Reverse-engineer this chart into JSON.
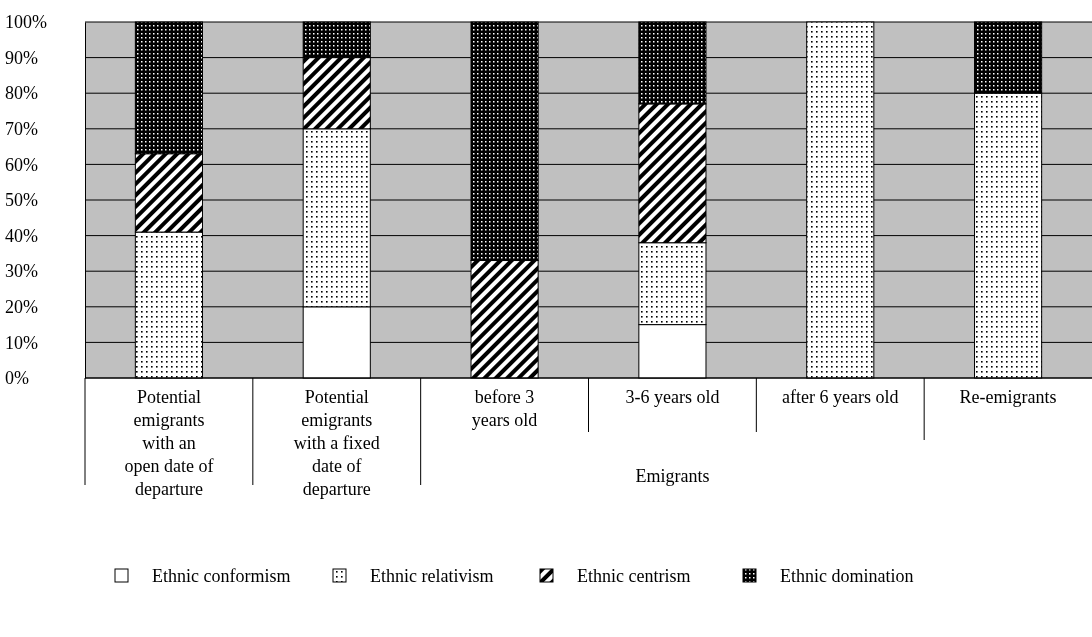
{
  "chart_data": {
    "type": "bar",
    "stacked": true,
    "categories": [
      "Potential emigrants with an open date of departure",
      "Potential emigrants with a fixed date of departure",
      "before 3 years old",
      "3-6 years old",
      "after 6 years old",
      "Re-emigrants"
    ],
    "series": [
      {
        "name": "Ethnic conformism",
        "color": "#ffffff",
        "values": [
          0,
          20,
          0,
          15,
          0,
          0
        ]
      },
      {
        "name": "Ethnic relativism",
        "color": "#000000",
        "values": [
          41,
          50,
          0,
          23,
          100,
          80
        ]
      },
      {
        "name": "Ethnic centrism",
        "color": "#000000",
        "values": [
          22,
          20,
          33,
          39,
          0,
          0
        ]
      },
      {
        "name": "Ethnic domination",
        "color": "#000000",
        "values": [
          37,
          10,
          67,
          23,
          0,
          20
        ]
      }
    ],
    "ylim": [
      0,
      100
    ],
    "yticks": [
      {
        "value": 0,
        "label": "0%"
      },
      {
        "value": 10,
        "label": "10%"
      },
      {
        "value": 20,
        "label": "20%"
      },
      {
        "value": 30,
        "label": "30%"
      },
      {
        "value": 40,
        "label": "40%"
      },
      {
        "value": 50,
        "label": "50%"
      },
      {
        "value": 60,
        "label": "60%"
      },
      {
        "value": 70,
        "label": "70%"
      },
      {
        "value": 80,
        "label": "80%"
      },
      {
        "value": 90,
        "label": "90%"
      },
      {
        "value": 100,
        "label": "100%"
      }
    ],
    "grid": "y",
    "legend": "bottom",
    "annotations": [
      "Emigrants"
    ]
  }
}
